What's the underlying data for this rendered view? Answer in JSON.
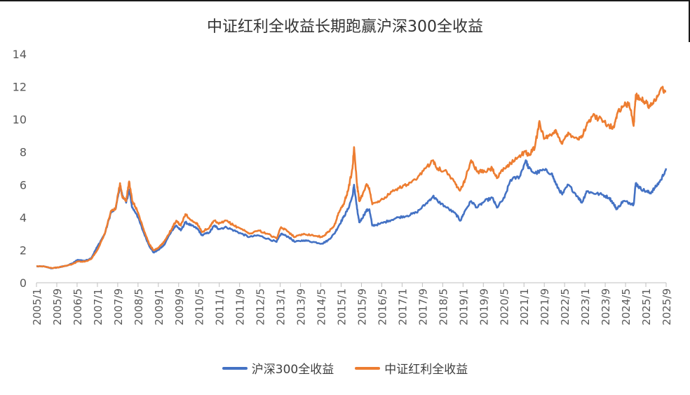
{
  "chart_data": {
    "type": "line",
    "title": "中证红利全收益长期跑赢沪深300全收益",
    "xlabel": "",
    "ylabel": "",
    "ylim": [
      0,
      14
    ],
    "yticks": [
      0,
      2,
      4,
      6,
      8,
      10,
      12,
      14
    ],
    "grid": false,
    "legend_position": "bottom",
    "x_tick_labels": [
      "2005/1",
      "2005/9",
      "2006/5",
      "2007/1",
      "2007/9",
      "2008/5",
      "2009/1",
      "2009/9",
      "2010/5",
      "2011/1",
      "2011/9",
      "2012/5",
      "2013/1",
      "2013/9",
      "2014/5",
      "2015/1",
      "2015/9",
      "2016/5",
      "2017/1",
      "2017/9",
      "2018/5",
      "2019/1",
      "2019/9",
      "2020/5",
      "2021/1",
      "2021/9",
      "2022/5",
      "2023/1",
      "2023/9",
      "2024/5",
      "2025/1",
      "2025/9"
    ],
    "x_range": [
      2005.0,
      2025.72
    ],
    "series": [
      {
        "name": "沪深300全收益",
        "color": "#4472c4",
        "points": [
          [
            2005.0,
            1.0
          ],
          [
            2005.25,
            1.0
          ],
          [
            2005.5,
            0.88
          ],
          [
            2005.75,
            0.95
          ],
          [
            2006.0,
            1.05
          ],
          [
            2006.2,
            1.2
          ],
          [
            2006.35,
            1.4
          ],
          [
            2006.6,
            1.35
          ],
          [
            2006.8,
            1.5
          ],
          [
            2007.0,
            2.2
          ],
          [
            2007.25,
            3.0
          ],
          [
            2007.45,
            4.3
          ],
          [
            2007.6,
            4.5
          ],
          [
            2007.75,
            5.9
          ],
          [
            2007.82,
            5.4
          ],
          [
            2007.95,
            4.9
          ],
          [
            2008.05,
            5.7
          ],
          [
            2008.15,
            4.6
          ],
          [
            2008.3,
            4.2
          ],
          [
            2008.5,
            3.2
          ],
          [
            2008.7,
            2.3
          ],
          [
            2008.85,
            1.85
          ],
          [
            2009.0,
            2.0
          ],
          [
            2009.2,
            2.3
          ],
          [
            2009.45,
            3.2
          ],
          [
            2009.6,
            3.5
          ],
          [
            2009.75,
            3.2
          ],
          [
            2009.9,
            3.7
          ],
          [
            2010.1,
            3.5
          ],
          [
            2010.3,
            3.3
          ],
          [
            2010.45,
            2.9
          ],
          [
            2010.7,
            3.1
          ],
          [
            2010.85,
            3.5
          ],
          [
            2011.0,
            3.3
          ],
          [
            2011.25,
            3.4
          ],
          [
            2011.5,
            3.2
          ],
          [
            2011.75,
            3.0
          ],
          [
            2012.0,
            2.8
          ],
          [
            2012.3,
            2.9
          ],
          [
            2012.6,
            2.7
          ],
          [
            2012.9,
            2.5
          ],
          [
            2013.05,
            3.0
          ],
          [
            2013.3,
            2.8
          ],
          [
            2013.5,
            2.5
          ],
          [
            2013.8,
            2.6
          ],
          [
            2014.1,
            2.5
          ],
          [
            2014.4,
            2.4
          ],
          [
            2014.6,
            2.6
          ],
          [
            2014.8,
            3.0
          ],
          [
            2014.95,
            3.5
          ],
          [
            2015.1,
            4.0
          ],
          [
            2015.25,
            4.5
          ],
          [
            2015.4,
            5.3
          ],
          [
            2015.45,
            6.0
          ],
          [
            2015.55,
            4.5
          ],
          [
            2015.62,
            3.7
          ],
          [
            2015.7,
            3.9
          ],
          [
            2015.85,
            4.4
          ],
          [
            2015.95,
            4.5
          ],
          [
            2016.05,
            3.5
          ],
          [
            2016.3,
            3.6
          ],
          [
            2016.6,
            3.8
          ],
          [
            2016.9,
            4.0
          ],
          [
            2017.2,
            4.1
          ],
          [
            2017.5,
            4.3
          ],
          [
            2017.8,
            4.8
          ],
          [
            2018.05,
            5.3
          ],
          [
            2018.2,
            5.0
          ],
          [
            2018.5,
            4.6
          ],
          [
            2018.8,
            4.2
          ],
          [
            2018.95,
            3.8
          ],
          [
            2019.1,
            4.4
          ],
          [
            2019.3,
            5.0
          ],
          [
            2019.5,
            4.6
          ],
          [
            2019.75,
            5.0
          ],
          [
            2020.0,
            5.2
          ],
          [
            2020.15,
            4.6
          ],
          [
            2020.4,
            5.2
          ],
          [
            2020.6,
            6.3
          ],
          [
            2020.9,
            6.5
          ],
          [
            2021.1,
            7.5
          ],
          [
            2021.2,
            7.0
          ],
          [
            2021.4,
            6.7
          ],
          [
            2021.7,
            6.9
          ],
          [
            2021.95,
            6.7
          ],
          [
            2022.1,
            6.0
          ],
          [
            2022.3,
            5.4
          ],
          [
            2022.5,
            6.0
          ],
          [
            2022.8,
            5.3
          ],
          [
            2022.95,
            4.9
          ],
          [
            2023.1,
            5.6
          ],
          [
            2023.3,
            5.5
          ],
          [
            2023.6,
            5.4
          ],
          [
            2023.85,
            5.2
          ],
          [
            2024.0,
            4.8
          ],
          [
            2024.1,
            4.5
          ],
          [
            2024.3,
            5.0
          ],
          [
            2024.5,
            4.9
          ],
          [
            2024.65,
            4.8
          ],
          [
            2024.72,
            6.1
          ],
          [
            2024.85,
            5.8
          ],
          [
            2025.05,
            5.6
          ],
          [
            2025.2,
            5.5
          ],
          [
            2025.35,
            5.8
          ],
          [
            2025.55,
            6.3
          ],
          [
            2025.72,
            7.0
          ]
        ]
      },
      {
        "name": "中证红利全收益",
        "color": "#ed7d31",
        "points": [
          [
            2005.0,
            1.0
          ],
          [
            2005.25,
            1.0
          ],
          [
            2005.5,
            0.9
          ],
          [
            2005.75,
            0.95
          ],
          [
            2006.0,
            1.05
          ],
          [
            2006.2,
            1.15
          ],
          [
            2006.35,
            1.3
          ],
          [
            2006.6,
            1.3
          ],
          [
            2006.8,
            1.45
          ],
          [
            2007.0,
            2.0
          ],
          [
            2007.25,
            3.0
          ],
          [
            2007.45,
            4.4
          ],
          [
            2007.6,
            4.5
          ],
          [
            2007.75,
            6.1
          ],
          [
            2007.82,
            5.3
          ],
          [
            2007.95,
            5.0
          ],
          [
            2008.05,
            6.2
          ],
          [
            2008.15,
            5.0
          ],
          [
            2008.3,
            4.5
          ],
          [
            2008.5,
            3.4
          ],
          [
            2008.7,
            2.4
          ],
          [
            2008.85,
            2.0
          ],
          [
            2009.0,
            2.1
          ],
          [
            2009.2,
            2.5
          ],
          [
            2009.45,
            3.3
          ],
          [
            2009.6,
            3.8
          ],
          [
            2009.75,
            3.5
          ],
          [
            2009.9,
            4.2
          ],
          [
            2010.1,
            3.8
          ],
          [
            2010.3,
            3.6
          ],
          [
            2010.45,
            3.1
          ],
          [
            2010.7,
            3.4
          ],
          [
            2010.85,
            3.8
          ],
          [
            2011.0,
            3.6
          ],
          [
            2011.25,
            3.8
          ],
          [
            2011.5,
            3.5
          ],
          [
            2011.75,
            3.3
          ],
          [
            2012.0,
            3.0
          ],
          [
            2012.3,
            3.2
          ],
          [
            2012.6,
            3.0
          ],
          [
            2012.9,
            2.7
          ],
          [
            2013.05,
            3.4
          ],
          [
            2013.3,
            3.1
          ],
          [
            2013.5,
            2.8
          ],
          [
            2013.8,
            3.0
          ],
          [
            2014.1,
            2.9
          ],
          [
            2014.4,
            2.8
          ],
          [
            2014.6,
            3.1
          ],
          [
            2014.8,
            3.5
          ],
          [
            2014.95,
            4.3
          ],
          [
            2015.1,
            4.8
          ],
          [
            2015.25,
            5.6
          ],
          [
            2015.4,
            7.0
          ],
          [
            2015.45,
            8.3
          ],
          [
            2015.55,
            6.0
          ],
          [
            2015.62,
            5.0
          ],
          [
            2015.7,
            5.3
          ],
          [
            2015.85,
            6.0
          ],
          [
            2015.95,
            5.8
          ],
          [
            2016.05,
            4.8
          ],
          [
            2016.3,
            5.0
          ],
          [
            2016.6,
            5.4
          ],
          [
            2016.9,
            5.8
          ],
          [
            2017.2,
            6.0
          ],
          [
            2017.5,
            6.3
          ],
          [
            2017.8,
            7.0
          ],
          [
            2018.05,
            7.5
          ],
          [
            2018.2,
            7.0
          ],
          [
            2018.5,
            6.8
          ],
          [
            2018.8,
            6.0
          ],
          [
            2018.95,
            5.7
          ],
          [
            2019.1,
            6.3
          ],
          [
            2019.3,
            7.5
          ],
          [
            2019.5,
            6.8
          ],
          [
            2019.75,
            6.8
          ],
          [
            2020.0,
            7.0
          ],
          [
            2020.15,
            6.4
          ],
          [
            2020.4,
            7.0
          ],
          [
            2020.6,
            7.3
          ],
          [
            2020.9,
            7.8
          ],
          [
            2021.1,
            8.0
          ],
          [
            2021.2,
            7.8
          ],
          [
            2021.4,
            8.3
          ],
          [
            2021.55,
            9.9
          ],
          [
            2021.7,
            8.8
          ],
          [
            2021.95,
            9.0
          ],
          [
            2022.1,
            9.3
          ],
          [
            2022.3,
            8.5
          ],
          [
            2022.5,
            9.2
          ],
          [
            2022.8,
            8.8
          ],
          [
            2022.95,
            9.0
          ],
          [
            2023.1,
            9.6
          ],
          [
            2023.3,
            10.2
          ],
          [
            2023.6,
            10.0
          ],
          [
            2023.85,
            9.6
          ],
          [
            2024.0,
            9.5
          ],
          [
            2024.1,
            10.3
          ],
          [
            2024.3,
            10.8
          ],
          [
            2024.5,
            11.0
          ],
          [
            2024.65,
            9.6
          ],
          [
            2024.72,
            11.5
          ],
          [
            2024.85,
            11.3
          ],
          [
            2025.05,
            11.0
          ],
          [
            2025.2,
            10.8
          ],
          [
            2025.35,
            11.2
          ],
          [
            2025.55,
            11.9
          ],
          [
            2025.72,
            11.7
          ]
        ]
      }
    ]
  }
}
